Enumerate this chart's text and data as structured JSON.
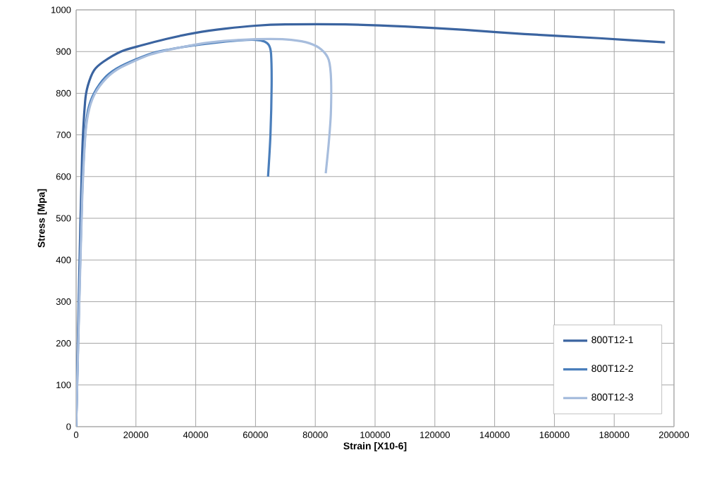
{
  "chart_data": {
    "type": "line",
    "xlabel": "Strain [X10-6]",
    "ylabel": "Stress [Mpa]",
    "xlim": [
      0,
      200000
    ],
    "ylim": [
      0,
      1000
    ],
    "xticks": [
      0,
      20000,
      40000,
      60000,
      80000,
      100000,
      120000,
      140000,
      160000,
      180000,
      200000
    ],
    "yticks": [
      0,
      100,
      200,
      300,
      400,
      500,
      600,
      700,
      800,
      900,
      1000
    ],
    "grid": true,
    "legend": "bottom right",
    "marker": "none",
    "line_style": "solid",
    "series": [
      {
        "name": "800T12-1",
        "color": "#3b64a0",
        "x": [
          0,
          1000,
          2000,
          3000,
          4000,
          6000,
          9000,
          15000,
          22000,
          30000,
          40000,
          50000,
          60000,
          70000,
          90000,
          110000,
          130000,
          150000,
          175000,
          197000
        ],
        "values": [
          0,
          350,
          650,
          780,
          820,
          855,
          875,
          900,
          915,
          930,
          945,
          955,
          962,
          965,
          965,
          960,
          952,
          942,
          932,
          922
        ]
      },
      {
        "name": "800T12-2",
        "color": "#4a7ebb",
        "x": [
          0,
          1000,
          2000,
          3000,
          4000,
          6000,
          10000,
          15000,
          25000,
          35000,
          45000,
          55000,
          60000,
          63000,
          64500,
          65200,
          65400,
          65000,
          64200
        ],
        "values": [
          0,
          300,
          560,
          700,
          760,
          800,
          840,
          865,
          895,
          910,
          920,
          927,
          928,
          924,
          915,
          895,
          820,
          700,
          600
        ]
      },
      {
        "name": "800T12-3",
        "color": "#a7bddd",
        "x": [
          0,
          1000,
          2000,
          3000,
          4000,
          6000,
          10000,
          15000,
          25000,
          35000,
          45000,
          55000,
          65000,
          72000,
          78000,
          82000,
          84500,
          85300,
          85200,
          84500,
          83500
        ],
        "values": [
          0,
          280,
          540,
          690,
          750,
          795,
          835,
          862,
          893,
          910,
          922,
          928,
          930,
          928,
          920,
          905,
          880,
          830,
          750,
          680,
          608
        ]
      }
    ]
  }
}
